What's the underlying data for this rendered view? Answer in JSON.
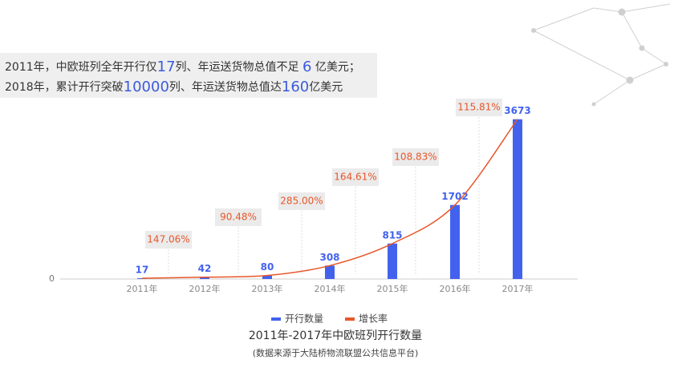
{
  "header": {
    "lines": [
      [
        "2011年，中欧班列全年开行仅",
        "17",
        "列、年运送货物总值不足 ",
        "6",
        " 亿美元；"
      ],
      [
        "2018年，累计开行突破",
        "10000",
        "列、年运送货物总值达",
        "160",
        "亿美元"
      ]
    ]
  },
  "chart_data": {
    "type": "bar",
    "title": "2011年-2017年中欧班列开行数量",
    "subtitle": "(数据来源于大陆桥物流联盟公共信息平台)",
    "categories": [
      "2011年",
      "2012年",
      "2013年",
      "2014年",
      "2015年",
      "2016年",
      "2017年"
    ],
    "ylim": [
      0,
      4000
    ],
    "yticks": [
      0
    ],
    "series": [
      {
        "name": "开行数量",
        "color": "#4262ee",
        "values": [
          17,
          42,
          80,
          308,
          815,
          1702,
          3673
        ]
      },
      {
        "name": "增长率",
        "color": "#e8572a",
        "values": [
          null,
          147.06,
          90.48,
          285.0,
          164.61,
          108.83,
          115.81
        ],
        "value_labels": [
          null,
          "147.06%",
          "90.48%",
          "285.00%",
          "164.61%",
          "108.83%",
          "115.81%"
        ]
      }
    ]
  }
}
